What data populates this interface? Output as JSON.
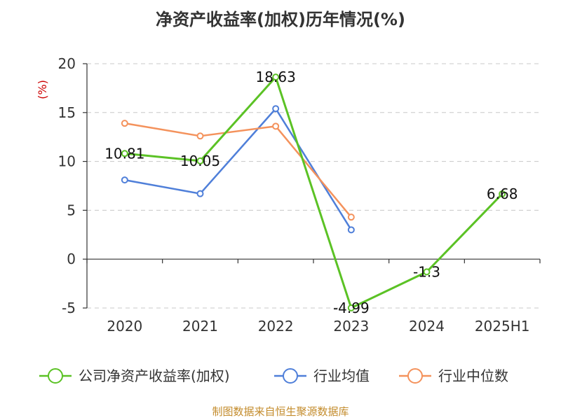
{
  "chart_data": {
    "type": "line",
    "title": "净资产收益率(加权)历年情况(%)",
    "ylabel": "(%)",
    "xlabel": "",
    "categories": [
      "2020",
      "2021",
      "2022",
      "2023",
      "2024",
      "2025H1"
    ],
    "ylim": [
      -5,
      20
    ],
    "yticks": [
      20,
      15,
      10,
      5,
      0,
      -5
    ],
    "grid": true,
    "legend_position": "bottom",
    "series": [
      {
        "name": "公司净资产收益率(加权)",
        "color": "#5bc225",
        "values": [
          10.81,
          10.05,
          18.63,
          -4.99,
          -1.3,
          6.68
        ],
        "labels": [
          "10.81",
          "10.05",
          "18.63",
          "-4.99",
          "-1.3",
          "6.68"
        ]
      },
      {
        "name": "行业均值",
        "color": "#4f7fd9",
        "values": [
          8.1,
          6.7,
          15.4,
          3.0,
          null,
          null
        ]
      },
      {
        "name": "行业中位数",
        "color": "#f4925c",
        "values": [
          13.9,
          12.6,
          13.6,
          4.3,
          null,
          null
        ]
      }
    ]
  },
  "source_text": "制图数据来自恒生聚源数据库"
}
